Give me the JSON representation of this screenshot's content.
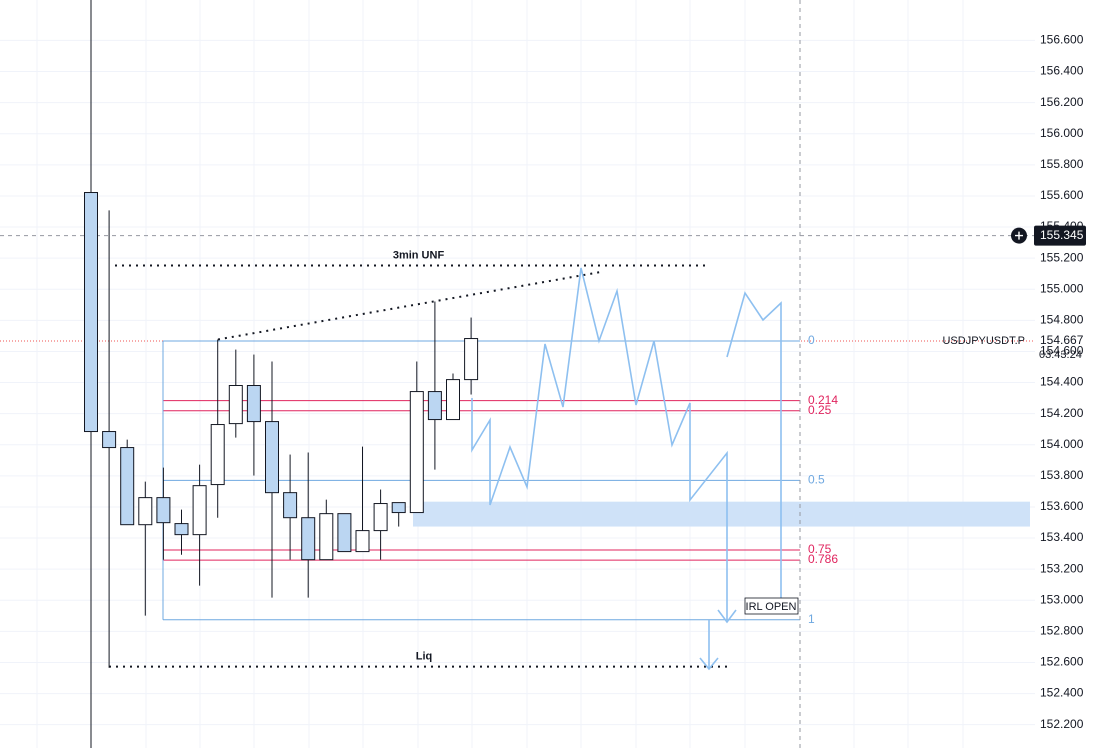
{
  "chart_data": {
    "type": "candlestick",
    "open": [
      155.622,
      154.085,
      153.982,
      153.486,
      153.66,
      153.493,
      153.422,
      153.744,
      154.136,
      154.381,
      154.149,
      153.692,
      153.531,
      153.261,
      153.557,
      153.313,
      153.448,
      153.628,
      153.564,
      154.342,
      154.162,
      154.419
    ],
    "high": [
      156.86,
      155.507,
      154.033,
      153.763,
      153.853,
      153.583,
      153.872,
      154.677,
      154.612,
      154.58,
      154.535,
      153.937,
      153.95,
      153.647,
      153.557,
      153.988,
      153.712,
      153.628,
      154.535,
      154.921,
      154.458,
      154.818
    ],
    "low": [
      152.05,
      152.566,
      153.486,
      152.901,
      153.261,
      153.293,
      153.094,
      153.531,
      154.046,
      153.802,
      153.017,
      153.261,
      153.017,
      153.261,
      153.313,
      153.313,
      153.261,
      153.474,
      153.564,
      153.84,
      154.162,
      154.323
    ],
    "close": [
      154.085,
      153.982,
      153.486,
      153.66,
      153.499,
      153.422,
      153.737,
      154.13,
      154.381,
      154.149,
      153.692,
      153.531,
      153.261,
      153.557,
      153.313,
      153.448,
      153.622,
      153.564,
      154.342,
      154.162,
      154.419,
      154.683
    ],
    "up_color": "#ffffff",
    "down_color": "#bbd6f2",
    "ylim": [
      152.05,
      156.86
    ],
    "yticks": [
      {
        "value": 152.2,
        "label": "152.200"
      },
      {
        "value": 152.4,
        "label": "152.400"
      },
      {
        "value": 152.6,
        "label": "152.600"
      },
      {
        "value": 152.8,
        "label": "152.800"
      },
      {
        "value": 153.0,
        "label": "153.000"
      },
      {
        "value": 153.2,
        "label": "153.200"
      },
      {
        "value": 153.4,
        "label": "153.400"
      },
      {
        "value": 153.6,
        "label": "153.600"
      },
      {
        "value": 153.8,
        "label": "153.800"
      },
      {
        "value": 154.0,
        "label": "154.000"
      },
      {
        "value": 154.2,
        "label": "154.200"
      },
      {
        "value": 154.4,
        "label": "154.400"
      },
      {
        "value": 154.6,
        "label": "154.600"
      },
      {
        "value": 154.8,
        "label": "154.800"
      },
      {
        "value": 155.0,
        "label": "155.000"
      },
      {
        "value": 155.2,
        "label": "155.200"
      },
      {
        "value": 155.4,
        "label": "155.400"
      },
      {
        "value": 155.6,
        "label": "155.600"
      },
      {
        "value": 155.8,
        "label": "155.800"
      },
      {
        "value": 156.0,
        "label": "156.000"
      },
      {
        "value": 156.2,
        "label": "156.200"
      },
      {
        "value": 156.4,
        "label": "156.400"
      },
      {
        "value": 156.6,
        "label": "156.600"
      }
    ],
    "grid": true,
    "fib": {
      "high": 154.667,
      "low": 152.875,
      "levels": [
        0,
        0.214,
        0.25,
        0.5,
        0.75,
        0.786,
        1
      ],
      "level_colors": [
        "#6fa8e0",
        "#e0245e",
        "#e0245e",
        "#6fa8e0",
        "#e0245e",
        "#e0245e",
        "#6fa8e0"
      ]
    },
    "lines": [
      {
        "label": "3min UNF",
        "value": 155.153
      },
      {
        "label": "Liq",
        "value": 152.573
      }
    ],
    "trendline": [
      154.677,
      155.11
    ],
    "zone": [
      153.474,
      153.634
    ],
    "zone_color": "#cfe2f8",
    "crosshair_price": 155.345,
    "last_price": 154.667,
    "symbol": "USDJPYUSDT.P",
    "countdown": "03:43:24",
    "box_label": "IRL OPEN"
  }
}
